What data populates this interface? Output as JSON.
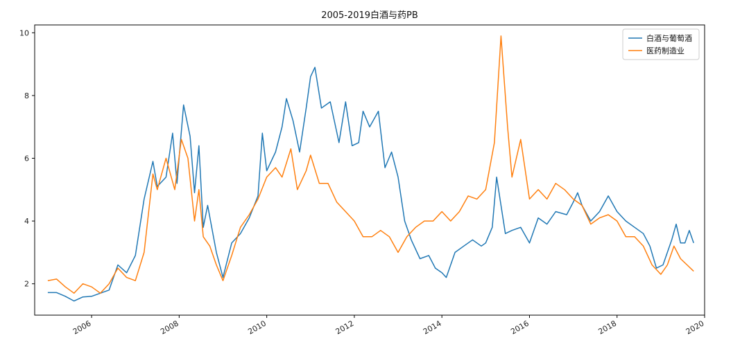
{
  "chart_data": {
    "type": "line",
    "title": "2005-2019白酒与药PB",
    "xlabel": "",
    "ylabel": "",
    "xlim": [
      2004.7,
      2020.0
    ],
    "ylim": [
      1.0,
      10.25
    ],
    "x_ticks": [
      2006,
      2008,
      2010,
      2012,
      2014,
      2016,
      2018,
      2020
    ],
    "x_tick_labels": [
      "2006",
      "2008",
      "2010",
      "2012",
      "2014",
      "2016",
      "2018",
      "2020"
    ],
    "y_ticks": [
      2,
      4,
      6,
      8,
      10
    ],
    "y_tick_labels": [
      "2",
      "4",
      "6",
      "8",
      "10"
    ],
    "grid": false,
    "legend_position": "top-right",
    "series": [
      {
        "name": "白酒与葡萄酒",
        "color": "#1f77b4",
        "points": [
          [
            2005.0,
            1.72
          ],
          [
            2005.2,
            1.72
          ],
          [
            2005.4,
            1.6
          ],
          [
            2005.6,
            1.45
          ],
          [
            2005.8,
            1.58
          ],
          [
            2006.0,
            1.6
          ],
          [
            2006.2,
            1.7
          ],
          [
            2006.4,
            1.8
          ],
          [
            2006.6,
            2.6
          ],
          [
            2006.8,
            2.35
          ],
          [
            2007.0,
            2.9
          ],
          [
            2007.2,
            4.7
          ],
          [
            2007.4,
            5.9
          ],
          [
            2007.5,
            5.1
          ],
          [
            2007.7,
            5.4
          ],
          [
            2007.85,
            6.8
          ],
          [
            2007.95,
            5.2
          ],
          [
            2008.1,
            7.7
          ],
          [
            2008.25,
            6.7
          ],
          [
            2008.35,
            4.9
          ],
          [
            2008.45,
            6.4
          ],
          [
            2008.55,
            3.8
          ],
          [
            2008.65,
            4.5
          ],
          [
            2008.85,
            3.0
          ],
          [
            2009.0,
            2.2
          ],
          [
            2009.2,
            3.3
          ],
          [
            2009.4,
            3.6
          ],
          [
            2009.6,
            4.1
          ],
          [
            2009.8,
            4.8
          ],
          [
            2009.9,
            6.8
          ],
          [
            2010.0,
            5.6
          ],
          [
            2010.2,
            6.2
          ],
          [
            2010.35,
            7.0
          ],
          [
            2010.45,
            7.9
          ],
          [
            2010.6,
            7.2
          ],
          [
            2010.75,
            6.2
          ],
          [
            2010.9,
            7.6
          ],
          [
            2011.0,
            8.6
          ],
          [
            2011.1,
            8.9
          ],
          [
            2011.25,
            7.6
          ],
          [
            2011.45,
            7.8
          ],
          [
            2011.65,
            6.5
          ],
          [
            2011.8,
            7.8
          ],
          [
            2011.95,
            6.4
          ],
          [
            2012.1,
            6.5
          ],
          [
            2012.2,
            7.5
          ],
          [
            2012.35,
            7.0
          ],
          [
            2012.55,
            7.5
          ],
          [
            2012.7,
            5.7
          ],
          [
            2012.85,
            6.2
          ],
          [
            2013.0,
            5.4
          ],
          [
            2013.15,
            4.0
          ],
          [
            2013.3,
            3.4
          ],
          [
            2013.5,
            2.8
          ],
          [
            2013.7,
            2.9
          ],
          [
            2013.85,
            2.5
          ],
          [
            2014.0,
            2.35
          ],
          [
            2014.1,
            2.2
          ],
          [
            2014.3,
            3.0
          ],
          [
            2014.5,
            3.2
          ],
          [
            2014.7,
            3.4
          ],
          [
            2014.9,
            3.2
          ],
          [
            2015.0,
            3.3
          ],
          [
            2015.15,
            3.8
          ],
          [
            2015.25,
            5.4
          ],
          [
            2015.45,
            3.6
          ],
          [
            2015.6,
            3.7
          ],
          [
            2015.8,
            3.8
          ],
          [
            2016.0,
            3.3
          ],
          [
            2016.2,
            4.1
          ],
          [
            2016.4,
            3.9
          ],
          [
            2016.6,
            4.3
          ],
          [
            2016.85,
            4.2
          ],
          [
            2017.0,
            4.6
          ],
          [
            2017.1,
            4.9
          ],
          [
            2017.2,
            4.5
          ],
          [
            2017.4,
            4.0
          ],
          [
            2017.6,
            4.3
          ],
          [
            2017.8,
            4.8
          ],
          [
            2018.0,
            4.3
          ],
          [
            2018.2,
            4.0
          ],
          [
            2018.4,
            3.8
          ],
          [
            2018.6,
            3.6
          ],
          [
            2018.75,
            3.2
          ],
          [
            2018.9,
            2.5
          ],
          [
            2019.05,
            2.6
          ],
          [
            2019.25,
            3.4
          ],
          [
            2019.35,
            3.9
          ],
          [
            2019.45,
            3.3
          ],
          [
            2019.55,
            3.3
          ],
          [
            2019.65,
            3.7
          ],
          [
            2019.75,
            3.3
          ]
        ]
      },
      {
        "name": "医药制造业",
        "color": "#ff7f0e",
        "points": [
          [
            2005.0,
            2.1
          ],
          [
            2005.2,
            2.15
          ],
          [
            2005.4,
            1.9
          ],
          [
            2005.6,
            1.7
          ],
          [
            2005.8,
            2.0
          ],
          [
            2006.0,
            1.9
          ],
          [
            2006.2,
            1.7
          ],
          [
            2006.4,
            2.0
          ],
          [
            2006.6,
            2.5
          ],
          [
            2006.8,
            2.2
          ],
          [
            2007.0,
            2.1
          ],
          [
            2007.2,
            3.0
          ],
          [
            2007.4,
            5.5
          ],
          [
            2007.5,
            5.0
          ],
          [
            2007.7,
            6.0
          ],
          [
            2007.9,
            5.0
          ],
          [
            2008.05,
            6.6
          ],
          [
            2008.2,
            6.0
          ],
          [
            2008.35,
            4.0
          ],
          [
            2008.45,
            5.0
          ],
          [
            2008.55,
            3.5
          ],
          [
            2008.7,
            3.2
          ],
          [
            2008.85,
            2.6
          ],
          [
            2009.0,
            2.1
          ],
          [
            2009.2,
            2.9
          ],
          [
            2009.4,
            3.8
          ],
          [
            2009.6,
            4.2
          ],
          [
            2009.8,
            4.7
          ],
          [
            2010.0,
            5.4
          ],
          [
            2010.2,
            5.7
          ],
          [
            2010.35,
            5.4
          ],
          [
            2010.55,
            6.3
          ],
          [
            2010.7,
            5.0
          ],
          [
            2010.9,
            5.6
          ],
          [
            2011.0,
            6.1
          ],
          [
            2011.2,
            5.2
          ],
          [
            2011.4,
            5.2
          ],
          [
            2011.6,
            4.6
          ],
          [
            2011.8,
            4.3
          ],
          [
            2012.0,
            4.0
          ],
          [
            2012.2,
            3.5
          ],
          [
            2012.4,
            3.5
          ],
          [
            2012.6,
            3.7
          ],
          [
            2012.8,
            3.5
          ],
          [
            2013.0,
            3.0
          ],
          [
            2013.2,
            3.5
          ],
          [
            2013.4,
            3.8
          ],
          [
            2013.6,
            4.0
          ],
          [
            2013.8,
            4.0
          ],
          [
            2014.0,
            4.3
          ],
          [
            2014.2,
            4.0
          ],
          [
            2014.4,
            4.3
          ],
          [
            2014.6,
            4.8
          ],
          [
            2014.8,
            4.7
          ],
          [
            2015.0,
            5.0
          ],
          [
            2015.2,
            6.5
          ],
          [
            2015.35,
            9.9
          ],
          [
            2015.5,
            7.0
          ],
          [
            2015.6,
            5.4
          ],
          [
            2015.8,
            6.6
          ],
          [
            2016.0,
            4.7
          ],
          [
            2016.2,
            5.0
          ],
          [
            2016.4,
            4.7
          ],
          [
            2016.6,
            5.2
          ],
          [
            2016.8,
            5.0
          ],
          [
            2017.0,
            4.7
          ],
          [
            2017.2,
            4.5
          ],
          [
            2017.4,
            3.9
          ],
          [
            2017.6,
            4.1
          ],
          [
            2017.8,
            4.2
          ],
          [
            2018.0,
            4.0
          ],
          [
            2018.2,
            3.5
          ],
          [
            2018.4,
            3.5
          ],
          [
            2018.6,
            3.2
          ],
          [
            2018.8,
            2.6
          ],
          [
            2019.0,
            2.3
          ],
          [
            2019.15,
            2.6
          ],
          [
            2019.3,
            3.2
          ],
          [
            2019.45,
            2.8
          ],
          [
            2019.6,
            2.6
          ],
          [
            2019.75,
            2.4
          ]
        ]
      }
    ]
  }
}
